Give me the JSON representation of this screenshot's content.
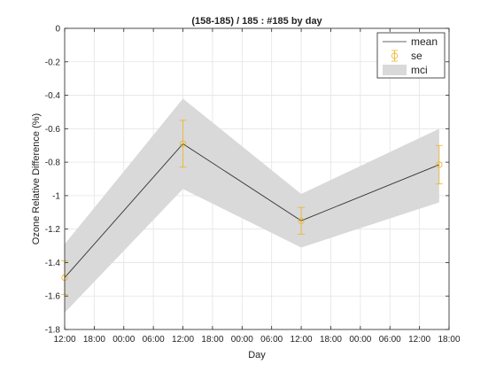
{
  "chart_data": {
    "type": "line",
    "title": "(158-185) / 185 : #185 by day",
    "xlabel": "Day",
    "ylabel": "Ozone Relative Difference (%)",
    "x_tick_labels": [
      "12:00",
      "18:00",
      "00:00",
      "06:00",
      "12:00",
      "18:00",
      "00:00",
      "06:00",
      "12:00",
      "18:00",
      "00:00",
      "06:00",
      "12:00",
      "18:00"
    ],
    "xlim_hours": [
      0,
      78
    ],
    "x_hours": [
      0,
      24,
      48,
      76
    ],
    "ylim": [
      -1.8,
      0
    ],
    "y_ticks": [
      0,
      -0.2,
      -0.4,
      -0.6,
      -0.8,
      -1,
      -1.2,
      -1.4,
      -1.6,
      -1.8
    ],
    "y_tick_labels": [
      "0",
      "-0.2",
      "-0.4",
      "-0.6",
      "-0.8",
      "-1",
      "-1.2",
      "-1.4",
      "-1.6",
      "-1.8"
    ],
    "grid": true,
    "legend_position": "top-right",
    "series": [
      {
        "name": "mean",
        "values": [
          -1.49,
          -0.69,
          -1.15,
          -0.815
        ],
        "color": "#333333"
      },
      {
        "name": "se",
        "values": [
          -1.49,
          -0.69,
          -1.15,
          -0.815
        ],
        "err": [
          0.1,
          0.14,
          0.08,
          0.115
        ],
        "color": "#EDB120"
      },
      {
        "name": "mci",
        "upper": [
          -1.29,
          -0.42,
          -0.99,
          -0.6
        ],
        "lower": [
          -1.7,
          -0.96,
          -1.31,
          -1.04
        ],
        "color": "#d9d9d9"
      }
    ]
  }
}
